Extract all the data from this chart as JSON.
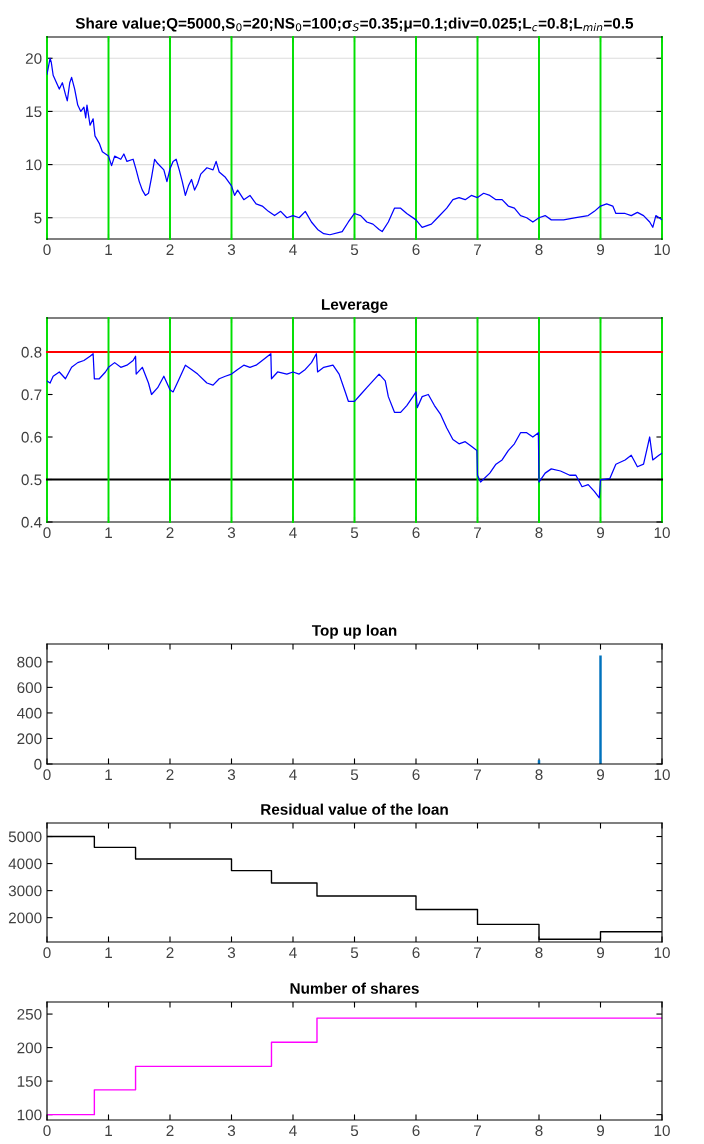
{
  "chart_data": [
    {
      "type": "line",
      "title": "Share value;Q=5000,S$_{0}$=20;NS$_{0}$=100;σ$_{S}$=0.35;μ=0.1;div=0.025;L$_{c}$=0.8;L$_{min}$=0.5",
      "xlim": [
        0,
        10
      ],
      "xticks": [
        0,
        1,
        2,
        3,
        4,
        5,
        6,
        7,
        8,
        9,
        10
      ],
      "ylim": [
        3,
        22
      ],
      "yticks": [
        5,
        10,
        15,
        20
      ],
      "grid": "y",
      "series": [
        {
          "color": "#0000ff",
          "x": [
            0,
            0.05,
            0.07,
            0.1,
            0.2,
            0.25,
            0.3,
            0.33,
            0.37,
            0.4,
            0.45,
            0.5,
            0.55,
            0.6,
            0.63,
            0.65,
            0.7,
            0.75,
            0.78,
            0.85,
            0.9,
            1.0,
            1.05,
            1.1,
            1.2,
            1.25,
            1.3,
            1.4,
            1.45,
            1.5,
            1.55,
            1.6,
            1.65,
            1.7,
            1.75,
            1.8,
            1.9,
            1.95,
            2.0,
            2.05,
            2.1,
            2.15,
            2.2,
            2.25,
            2.3,
            2.35,
            2.4,
            2.45,
            2.5,
            2.6,
            2.7,
            2.75,
            2.8,
            2.9,
            3.0,
            3.05,
            3.1,
            3.2,
            3.3,
            3.4,
            3.5,
            3.6,
            3.7,
            3.8,
            3.9,
            4.0,
            4.1,
            4.2,
            4.3,
            4.4,
            4.5,
            4.6,
            4.8,
            4.9,
            5.0,
            5.1,
            5.2,
            5.3,
            5.4,
            5.45,
            5.55,
            5.65,
            5.75,
            5.85,
            6.0,
            6.1,
            6.25,
            6.35,
            6.5,
            6.6,
            6.7,
            6.8,
            6.9,
            7.0,
            7.1,
            7.2,
            7.3,
            7.4,
            7.5,
            7.6,
            7.7,
            7.8,
            7.9,
            8.0,
            8.1,
            8.2,
            8.4,
            8.6,
            8.8,
            8.9,
            9.0,
            9.1,
            9.2,
            9.25,
            9.4,
            9.5,
            9.6,
            9.7,
            9.8,
            9.85,
            9.9,
            10.0
          ],
          "values": [
            18.5,
            20.0,
            19.6,
            18.4,
            17.1,
            17.7,
            16.6,
            16.0,
            17.7,
            18.2,
            17.1,
            15.6,
            15.0,
            15.4,
            14.4,
            15.6,
            13.7,
            14.3,
            12.7,
            12.0,
            11.2,
            10.8,
            9.9,
            10.8,
            10.5,
            11.0,
            10.3,
            10.5,
            9.5,
            8.4,
            7.6,
            7.1,
            7.3,
            8.8,
            10.5,
            10.1,
            9.5,
            8.4,
            9.6,
            10.3,
            10.5,
            9.5,
            8.4,
            7.1,
            8.0,
            8.6,
            7.6,
            8.2,
            9.1,
            9.7,
            9.5,
            10.3,
            9.3,
            8.8,
            8.0,
            7.1,
            7.6,
            6.7,
            7.1,
            6.3,
            6.1,
            5.6,
            5.2,
            5.6,
            5.0,
            5.2,
            5.0,
            5.6,
            4.6,
            3.9,
            3.5,
            3.4,
            3.7,
            4.6,
            5.4,
            5.2,
            4.6,
            4.4,
            3.9,
            3.7,
            4.6,
            5.9,
            5.9,
            5.4,
            4.8,
            4.1,
            4.4,
            5.0,
            5.9,
            6.7,
            6.9,
            6.7,
            7.1,
            6.9,
            7.3,
            7.1,
            6.7,
            6.7,
            6.1,
            5.9,
            5.2,
            5.0,
            4.6,
            5.0,
            5.2,
            4.8,
            4.8,
            5.0,
            5.2,
            5.6,
            6.1,
            6.3,
            6.1,
            5.4,
            5.4,
            5.2,
            5.5,
            5.2,
            4.6,
            4.1,
            5.2,
            4.8
          ]
        }
      ],
      "ref_lines": [
        {
          "axis": "x",
          "value": 1,
          "color": "#00e000"
        },
        {
          "axis": "x",
          "value": 2,
          "color": "#00e000"
        },
        {
          "axis": "x",
          "value": 3,
          "color": "#00e000"
        },
        {
          "axis": "x",
          "value": 4,
          "color": "#00e000"
        },
        {
          "axis": "x",
          "value": 5,
          "color": "#00e000"
        },
        {
          "axis": "x",
          "value": 6,
          "color": "#00e000"
        },
        {
          "axis": "x",
          "value": 7,
          "color": "#00e000"
        },
        {
          "axis": "x",
          "value": 8,
          "color": "#00e000"
        },
        {
          "axis": "x",
          "value": 9,
          "color": "#00e000"
        }
      ]
    },
    {
      "type": "line",
      "title": "Leverage",
      "xlim": [
        0,
        10
      ],
      "xticks": [
        0,
        1,
        2,
        3,
        4,
        5,
        6,
        7,
        8,
        9,
        10
      ],
      "ylim": [
        0.4,
        0.88
      ],
      "yticks": [
        0.4,
        0.5,
        0.6,
        0.7,
        0.8
      ],
      "series": [
        {
          "color": "#0000ff",
          "x": [
            0,
            0.05,
            0.1,
            0.2,
            0.3,
            0.4,
            0.5,
            0.6,
            0.7,
            0.75,
            0.77,
            0.85,
            0.95,
            1.0,
            1.1,
            1.2,
            1.3,
            1.4,
            1.44,
            1.45,
            1.55,
            1.65,
            1.7,
            1.8,
            1.9,
            2.0,
            2.05,
            2.15,
            2.25,
            2.35,
            2.45,
            2.6,
            2.7,
            2.8,
            2.9,
            3.0,
            3.1,
            3.2,
            3.3,
            3.4,
            3.5,
            3.64,
            3.65,
            3.75,
            3.9,
            4.0,
            4.1,
            4.2,
            4.3,
            4.38,
            4.4,
            4.5,
            4.65,
            4.75,
            4.85,
            4.9,
            5.0,
            5.1,
            5.2,
            5.3,
            5.4,
            5.5,
            5.55,
            5.65,
            5.75,
            5.85,
            5.95,
            6.0,
            6.02,
            6.1,
            6.2,
            6.3,
            6.4,
            6.5,
            6.6,
            6.7,
            6.8,
            6.9,
            6.99,
            7.0,
            7.05,
            7.2,
            7.3,
            7.4,
            7.5,
            7.6,
            7.7,
            7.8,
            7.9,
            7.99,
            8.0,
            8.1,
            8.2,
            8.35,
            8.5,
            8.6,
            8.7,
            8.8,
            8.9,
            8.98,
            9.0,
            9.15,
            9.25,
            9.4,
            9.5,
            9.6,
            9.7,
            9.75,
            9.8,
            9.85,
            9.95,
            10.0
          ],
          "values": [
            0.732,
            0.727,
            0.743,
            0.753,
            0.737,
            0.764,
            0.775,
            0.78,
            0.79,
            0.796,
            0.737,
            0.737,
            0.753,
            0.764,
            0.775,
            0.764,
            0.769,
            0.78,
            0.79,
            0.748,
            0.764,
            0.727,
            0.7,
            0.716,
            0.743,
            0.711,
            0.706,
            0.737,
            0.769,
            0.759,
            0.748,
            0.727,
            0.722,
            0.737,
            0.743,
            0.748,
            0.759,
            0.769,
            0.764,
            0.769,
            0.78,
            0.796,
            0.737,
            0.753,
            0.748,
            0.753,
            0.748,
            0.759,
            0.775,
            0.796,
            0.753,
            0.764,
            0.769,
            0.748,
            0.706,
            0.684,
            0.684,
            0.7,
            0.716,
            0.732,
            0.748,
            0.732,
            0.695,
            0.658,
            0.658,
            0.674,
            0.695,
            0.706,
            0.669,
            0.695,
            0.7,
            0.674,
            0.653,
            0.621,
            0.594,
            0.584,
            0.589,
            0.578,
            0.568,
            0.51,
            0.494,
            0.515,
            0.536,
            0.546,
            0.568,
            0.584,
            0.61,
            0.61,
            0.6,
            0.61,
            0.494,
            0.515,
            0.525,
            0.52,
            0.51,
            0.51,
            0.483,
            0.488,
            0.472,
            0.457,
            0.499,
            0.502,
            0.536,
            0.546,
            0.557,
            0.53,
            0.536,
            0.568,
            0.6,
            0.546,
            0.557,
            0.562
          ]
        }
      ],
      "ref_lines": [
        {
          "axis": "y",
          "value": 0.8,
          "color": "#ff0000"
        },
        {
          "axis": "y",
          "value": 0.5,
          "color": "#000000"
        },
        {
          "axis": "x",
          "value": 1,
          "color": "#00e000"
        },
        {
          "axis": "x",
          "value": 2,
          "color": "#00e000"
        },
        {
          "axis": "x",
          "value": 3,
          "color": "#00e000"
        },
        {
          "axis": "x",
          "value": 4,
          "color": "#00e000"
        },
        {
          "axis": "x",
          "value": 5,
          "color": "#00e000"
        },
        {
          "axis": "x",
          "value": 6,
          "color": "#00e000"
        },
        {
          "axis": "x",
          "value": 7,
          "color": "#00e000"
        },
        {
          "axis": "x",
          "value": 8,
          "color": "#00e000"
        },
        {
          "axis": "x",
          "value": 9,
          "color": "#00e000"
        }
      ]
    },
    {
      "type": "bar",
      "title": "Top up loan",
      "xlim": [
        0,
        10
      ],
      "xticks": [
        0,
        1,
        2,
        3,
        4,
        5,
        6,
        7,
        8,
        9,
        10
      ],
      "ylim": [
        0,
        940
      ],
      "yticks": [
        0,
        200,
        400,
        600,
        800
      ],
      "series": [
        {
          "color": "#0072bd",
          "x": [
            8,
            9
          ],
          "values": [
            30,
            850
          ]
        }
      ]
    },
    {
      "type": "step",
      "title": "Residual value of the loan",
      "xlim": [
        0,
        10
      ],
      "xticks": [
        0,
        1,
        2,
        3,
        4,
        5,
        6,
        7,
        8,
        9,
        10
      ],
      "ylim": [
        1100,
        5500
      ],
      "yticks": [
        2000,
        3000,
        4000,
        5000
      ],
      "series": [
        {
          "color": "#000000",
          "x": [
            0,
            0.77,
            1.44,
            3,
            3.65,
            4.39,
            6,
            7,
            8,
            9,
            10
          ],
          "values": [
            5000,
            4600,
            4170,
            3740,
            3280,
            2800,
            2300,
            1750,
            1200,
            1480,
            1480
          ]
        }
      ]
    },
    {
      "type": "step",
      "title": "Number of shares",
      "xlim": [
        0,
        10
      ],
      "xticks": [
        0,
        1,
        2,
        3,
        4,
        5,
        6,
        7,
        8,
        9,
        10
      ],
      "ylim": [
        92,
        268
      ],
      "yticks": [
        100,
        150,
        200,
        250
      ],
      "series": [
        {
          "color": "#ff00ff",
          "x": [
            0,
            0.77,
            1.44,
            3.65,
            4.39,
            10
          ],
          "values": [
            100,
            137,
            172,
            208,
            244,
            244
          ]
        }
      ]
    }
  ]
}
